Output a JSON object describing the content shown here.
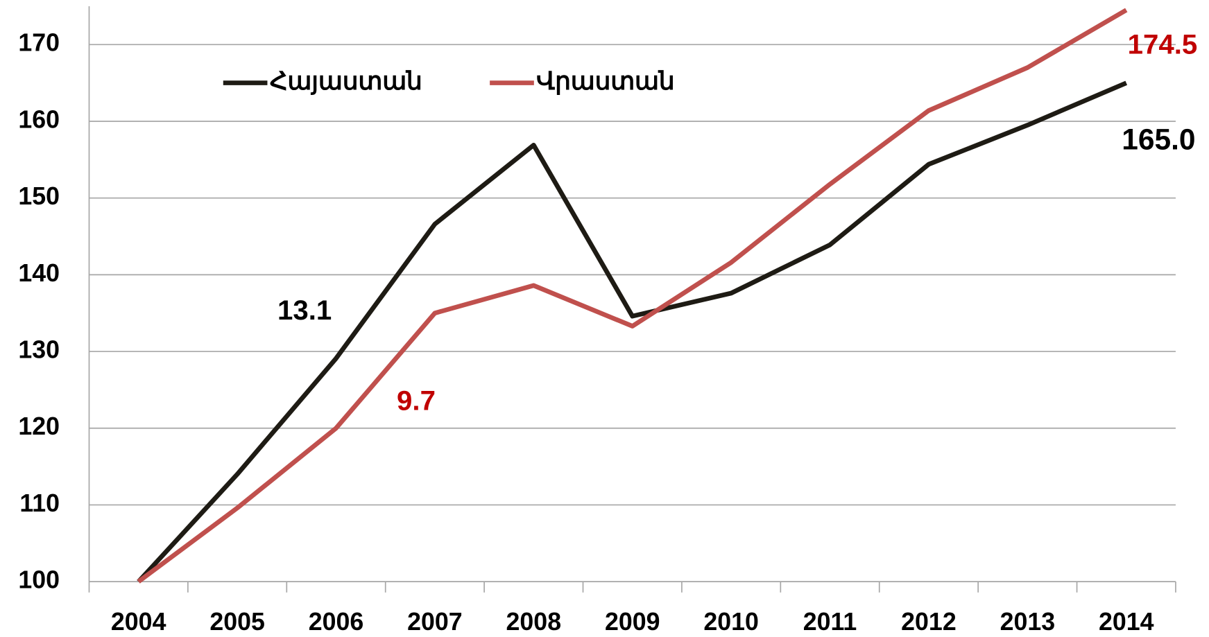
{
  "chart_data": {
    "type": "line",
    "categories": [
      "2004",
      "2005",
      "2006",
      "2007",
      "2008",
      "2009",
      "2010",
      "2011",
      "2012",
      "2013",
      "2014"
    ],
    "series": [
      {
        "name": "Հայաստան",
        "color": "#1e1b14",
        "values": [
          100,
          114.0,
          129.1,
          146.6,
          156.9,
          134.6,
          137.6,
          143.9,
          154.4,
          159.5,
          165.0
        ]
      },
      {
        "name": "Վրաստան",
        "color": "#c0504d",
        "values": [
          100,
          109.6,
          120.0,
          135.0,
          138.6,
          133.3,
          141.6,
          151.8,
          161.4,
          167.0,
          174.5
        ]
      }
    ],
    "ylim": [
      100,
      175
    ],
    "yticks": [
      100,
      110,
      120,
      130,
      140,
      150,
      160,
      170
    ],
    "grid": true,
    "legend": "top-left",
    "annotations": [
      {
        "text": "13.1",
        "color": "#000000"
      },
      {
        "text": "9.7",
        "color": "#c00000"
      },
      {
        "text": "174.5",
        "color": "#c00000"
      },
      {
        "text": "165.0",
        "color": "#000000"
      }
    ]
  }
}
